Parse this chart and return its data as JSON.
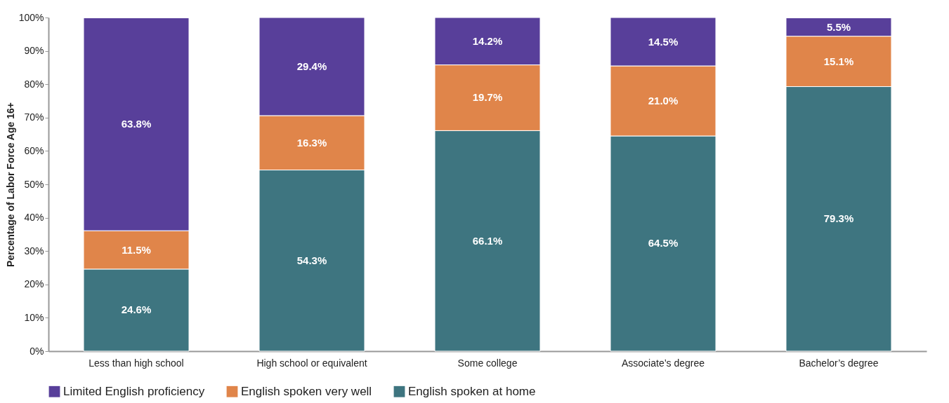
{
  "chart_data": {
    "type": "bar",
    "stacked": true,
    "ylabel": "Percentage of Labor Force Age 16+",
    "categories": [
      "Less than high school",
      "High school or equivalent",
      "Some college",
      "Associate’s degree",
      "Bachelor’s degree"
    ],
    "series": [
      {
        "name": "English spoken at home",
        "color": "#3e7580",
        "values": [
          24.6,
          54.3,
          66.1,
          64.5,
          79.3
        ],
        "value_labels": [
          "24.6%",
          "54.3%",
          "66.1%",
          "64.5%",
          "79.3%"
        ]
      },
      {
        "name": "English spoken very well",
        "color": "#e0854a",
        "values": [
          11.5,
          16.3,
          19.7,
          21.0,
          15.1
        ],
        "value_labels": [
          "11.5%",
          "16.3%",
          "19.7%",
          "21.0%",
          "15.1%"
        ]
      },
      {
        "name": "Limited English proficiency",
        "color": "#583f9a",
        "values": [
          63.8,
          29.4,
          14.2,
          14.5,
          5.5
        ],
        "value_labels": [
          "63.8%",
          "29.4%",
          "14.2%",
          "14.5%",
          "5.5%"
        ]
      }
    ],
    "ylim": [
      0,
      100
    ],
    "yticks": [
      {
        "value": 0,
        "label": "0%"
      },
      {
        "value": 10,
        "label": "10%"
      },
      {
        "value": 20,
        "label": "20%"
      },
      {
        "value": 30,
        "label": "30%"
      },
      {
        "value": 40,
        "label": "40%"
      },
      {
        "value": 50,
        "label": "50%"
      },
      {
        "value": 60,
        "label": "60%"
      },
      {
        "value": 70,
        "label": "70%"
      },
      {
        "value": 80,
        "label": "80%"
      },
      {
        "value": 90,
        "label": "90%"
      },
      {
        "value": 100,
        "label": "100%"
      }
    ],
    "grid": false,
    "legend": "bottom"
  }
}
